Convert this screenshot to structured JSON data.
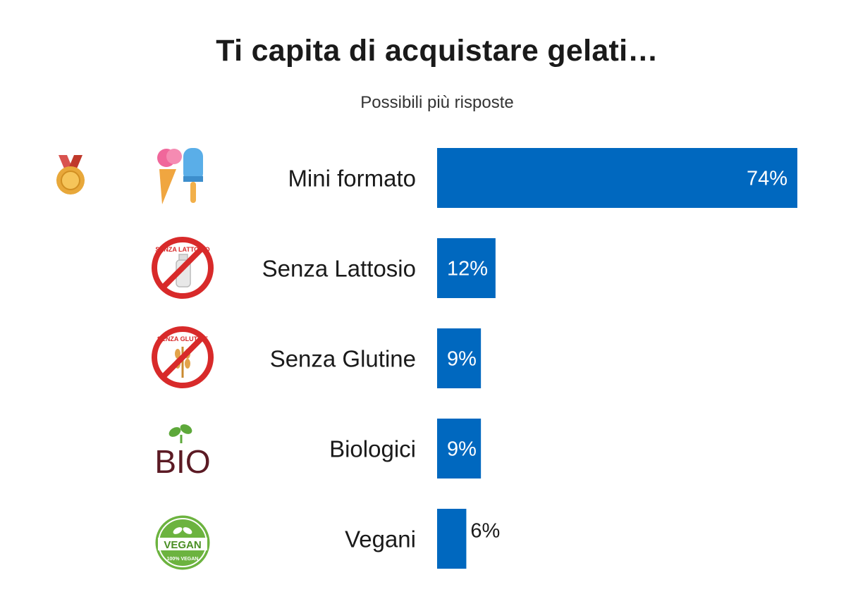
{
  "title": "Ti capita di acquistare gelati…",
  "subtitle": "Possibili più risposte",
  "accent_color": "#0068bf",
  "icons": [
    "medal-icon",
    "ice-cream-icon",
    "lactose-free-icon",
    "gluten-free-icon",
    "bio-icon",
    "vegan-icon"
  ],
  "icon_text": {
    "lactose": "SENZA LATTOSIO",
    "gluten": "SENZA GLUTINE",
    "bio": "BIO",
    "vegan": "VEGAN",
    "vegan_small": "100% VEGAN"
  },
  "chart_data": {
    "type": "bar",
    "orientation": "horizontal",
    "title": "Ti capita di acquistare gelati…",
    "subtitle": "Possibili più risposte",
    "categories": [
      "Mini formato",
      "Senza Lattosio",
      "Senza Glutine",
      "Biologici",
      "Vegani"
    ],
    "values": [
      74,
      12,
      9,
      9,
      6
    ],
    "value_labels": [
      "74%",
      "12%",
      "9%",
      "9%",
      "6%"
    ],
    "unit": "%",
    "xlim": [
      0,
      74
    ],
    "grid": false,
    "legend": "none"
  }
}
